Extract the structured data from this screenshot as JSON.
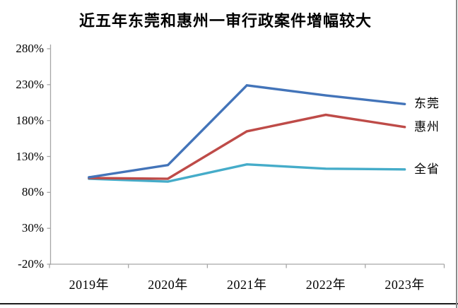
{
  "chart_data": {
    "type": "line",
    "title": "近五年东莞和惠州一审行政案件增幅较大",
    "categories": [
      "2019年",
      "2020年",
      "2021年",
      "2022年",
      "2023年"
    ],
    "series": [
      {
        "name": "东莞",
        "color": "#4374B9",
        "values": [
          101,
          118,
          229,
          215,
          203
        ]
      },
      {
        "name": "惠州",
        "color": "#BE4B48",
        "values": [
          100,
          99,
          165,
          188,
          171
        ]
      },
      {
        "name": "全省",
        "color": "#45ACC9",
        "values": [
          99,
          95,
          119,
          113,
          112
        ]
      }
    ],
    "ylabel": "",
    "xlabel": "",
    "ylim": [
      -20,
      280
    ],
    "ytick_step": 50,
    "ytick_labels": [
      "-20%",
      "30%",
      "80%",
      "130%",
      "180%",
      "230%",
      "280%"
    ],
    "grid": false,
    "legend_position": "labels-at-line-ends",
    "axis_color": "#A6A6A6"
  }
}
